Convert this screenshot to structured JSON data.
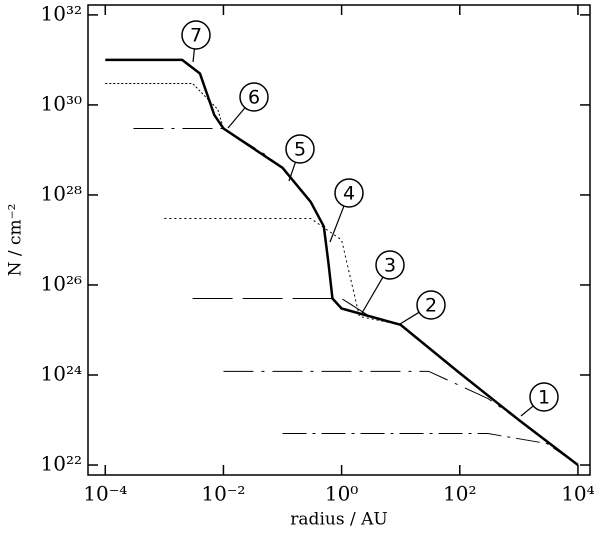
{
  "chart_data": {
    "type": "line",
    "xlabel": "radius / AU",
    "ylabel": "N / cm⁻²",
    "xscale": "log",
    "yscale": "log",
    "xlim": [
      5.1e-05,
      16000.0
    ],
    "ylim": [
      6e+21,
      1.66e+32
    ],
    "xticks": [
      {
        "value": 0.0001,
        "label": "10⁻⁴"
      },
      {
        "value": 0.01,
        "label": "10⁻²"
      },
      {
        "value": 1,
        "label": "10⁰"
      },
      {
        "value": 100,
        "label": "10²"
      },
      {
        "value": 10000,
        "label": "10⁴"
      }
    ],
    "yticks": [
      {
        "value": 1e+22,
        "label": "10²²"
      },
      {
        "value": 1e+24,
        "label": "10²⁴"
      },
      {
        "value": 1e+26,
        "label": "10²⁶"
      },
      {
        "value": 1e+28,
        "label": "10²⁸"
      },
      {
        "value": 1e+30,
        "label": "10³⁰"
      },
      {
        "value": 1e+32,
        "label": "10³²"
      }
    ],
    "series": [
      {
        "color": "#000000",
        "width": 2.5,
        "dash": "none",
        "x": [
          0.0001,
          0.002,
          0.004,
          0.007,
          0.01,
          0.1,
          0.3,
          0.5,
          0.6,
          0.7,
          1,
          10,
          100,
          1000,
          10000
        ],
        "values": [
          1e+31,
          1e+31,
          5e+30,
          6e+29,
          3e+29,
          4e+28,
          7e+27,
          2e+27,
          3e+26,
          5e+25,
          3e+25,
          1.3e+25,
          1.1e+24,
          1e+23,
          1e+22
        ]
      },
      {
        "color": "#000000",
        "width": 1,
        "dash": "24 6 3 6",
        "x": [
          0.1,
          300,
          3000,
          10000
        ],
        "values": [
          5e+22,
          5e+22,
          3e+22,
          1e+22
        ]
      },
      {
        "color": "#000000",
        "width": 1,
        "dash": "30 8 3 8",
        "x": [
          0.01,
          30,
          300,
          1000
        ],
        "values": [
          1.2e+24,
          1.2e+24,
          3e+23,
          1e+23
        ]
      },
      {
        "color": "#000000",
        "width": 1,
        "dash": "40 10",
        "x": [
          0.003,
          1,
          3,
          10
        ],
        "values": [
          5e+25,
          5e+25,
          2e+25,
          1.3e+25
        ]
      },
      {
        "color": "#000000",
        "width": 1,
        "dash": "2 3",
        "x": [
          0.001,
          0.3,
          1,
          2,
          10
        ],
        "values": [
          3e+27,
          3e+27,
          1e+27,
          2e+25,
          1.3e+25
        ]
      },
      {
        "color": "#000000",
        "width": 1,
        "dash": "30 8 3 8",
        "x": [
          0.0003,
          0.01,
          0.05,
          0.1
        ],
        "values": [
          3e+29,
          3e+29,
          8e+28,
          4e+28
        ]
      },
      {
        "color": "#000000",
        "width": 1,
        "dash": "2 2",
        "x": [
          0.0001,
          0.003,
          0.008,
          0.01
        ],
        "values": [
          3e+30,
          3e+30,
          8e+29,
          3e+29
        ]
      }
    ],
    "annotations": [
      "1",
      "2",
      "3",
      "4",
      "5",
      "6",
      "7"
    ]
  }
}
